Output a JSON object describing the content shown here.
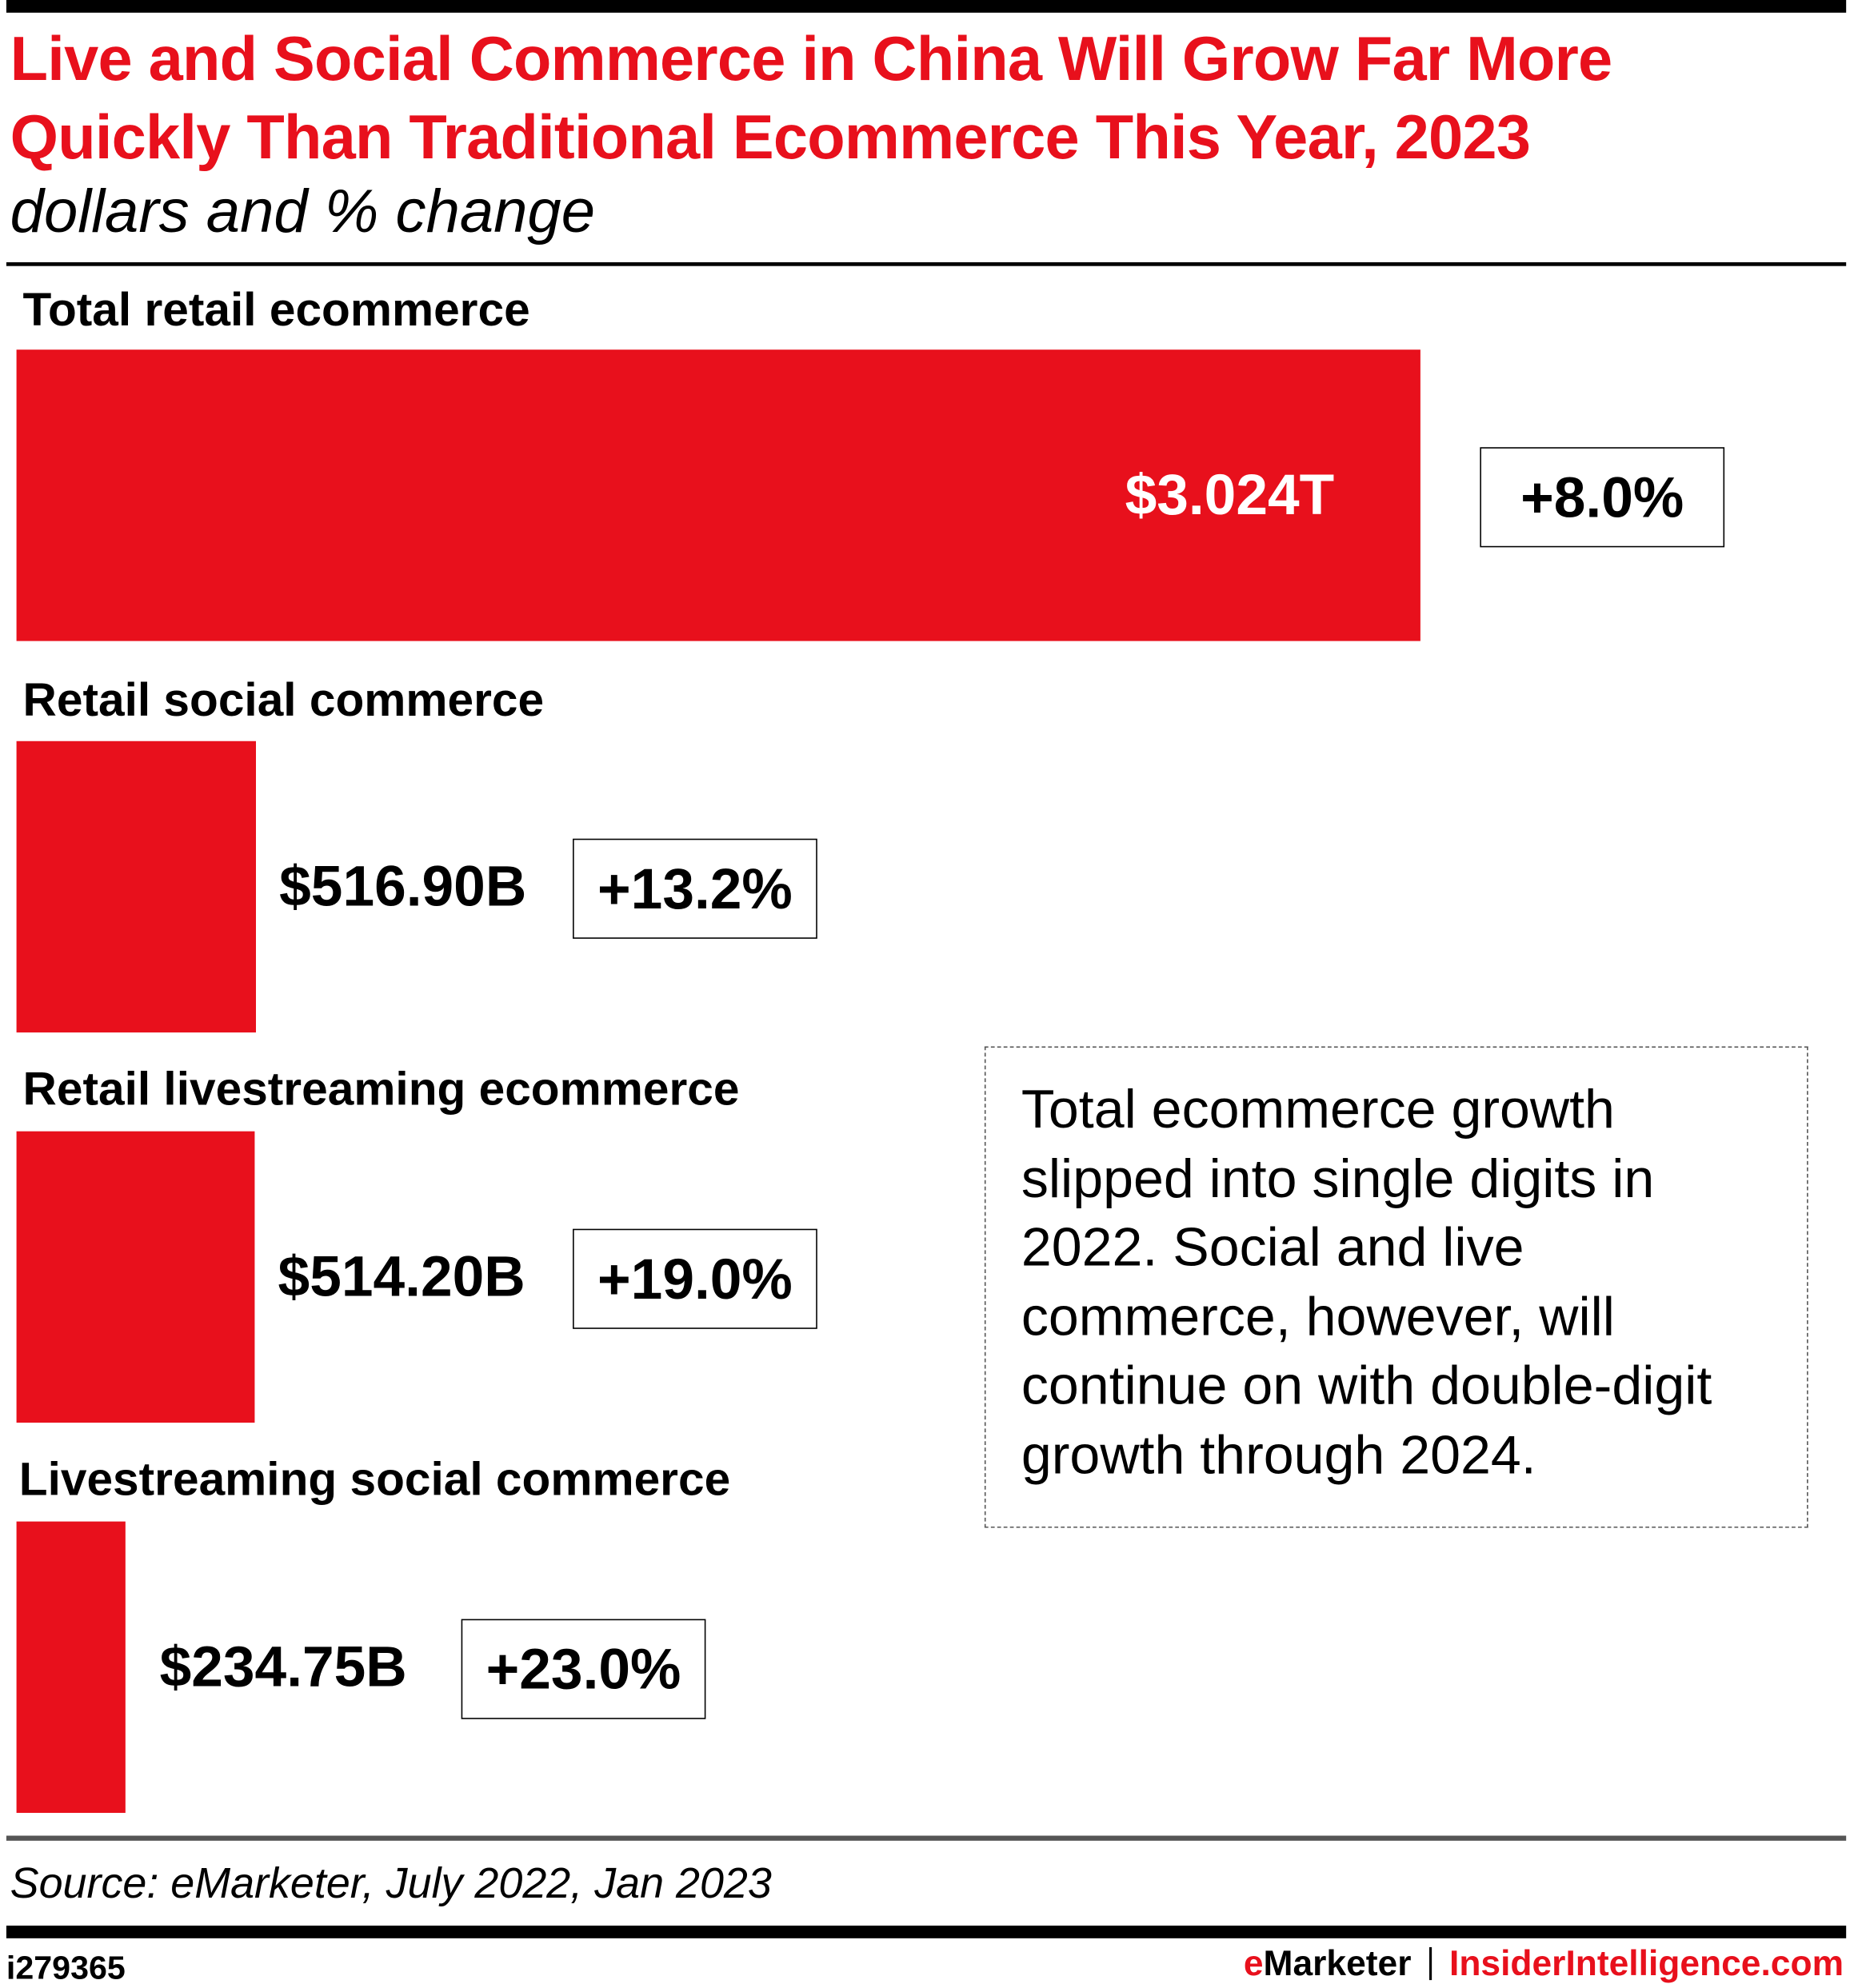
{
  "title": "Live and Social Commerce in China Will Grow Far More Quickly Than Traditional Ecommerce This Year, 2023",
  "subtitle": "dollars and % change",
  "chart_data": {
    "type": "bar",
    "orientation": "horizontal",
    "title": "Live and Social Commerce in China Will Grow Far More Quickly Than Traditional Ecommerce This Year, 2023",
    "subtitle": "dollars and % change",
    "unit": "billions of dollars",
    "bar_color": "#e8101c",
    "categories": [
      "Total retail ecommerce",
      "Retail social commerce",
      "Retail livestreaming ecommerce",
      "Livestreaming social commerce"
    ],
    "values": [
      3024,
      516.9,
      514.2,
      234.75
    ],
    "value_labels": [
      "$3.024T",
      "$516.90B",
      "$514.20B",
      "$234.75B"
    ],
    "pct_change_labels": [
      "+8.0%",
      "+13.2%",
      "+19.0%",
      "+23.0%"
    ],
    "pct_change": [
      8.0,
      13.2,
      19.0,
      23.0
    ],
    "grid": false
  },
  "note": "Total ecommerce growth slipped into single digits in 2022. Social and live commerce, however, will continue on with double-digit growth through 2024.",
  "source": "Source: eMarketer, July 2022, Jan 2023",
  "footer": {
    "id": "i279365",
    "brand_e": "e",
    "brand_rest": "Marketer",
    "site": "InsiderIntelligence.com"
  }
}
